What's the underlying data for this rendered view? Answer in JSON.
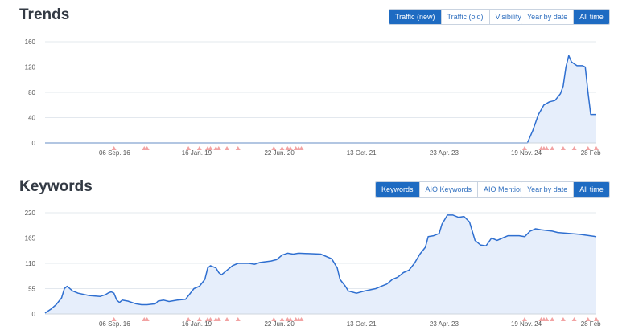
{
  "trends": {
    "title": "Trends",
    "metric_tabs": [
      {
        "label": "Traffic (new)",
        "active": true
      },
      {
        "label": "Traffic (old)",
        "active": false
      },
      {
        "label": "Visibility",
        "active": false
      }
    ],
    "range_tabs": [
      {
        "label": "Year by date",
        "active": false
      },
      {
        "label": "All time",
        "active": true
      }
    ]
  },
  "keywords": {
    "title": "Keywords",
    "metric_tabs": [
      {
        "label": "Keywords",
        "active": true
      },
      {
        "label": "AIO Keywords",
        "active": false
      },
      {
        "label": "AIO Mentions",
        "active": false
      }
    ],
    "range_tabs": [
      {
        "label": "Year by date",
        "active": false
      },
      {
        "label": "All time",
        "active": true
      }
    ]
  },
  "colors": {
    "line": "#2f6fd0",
    "area": "#e6eefb",
    "marker": "#f2a3a3",
    "active_tab": "#1e6bc2",
    "grid": "#e3e8ee"
  },
  "chart_data": [
    {
      "type": "area",
      "name": "Trends",
      "x_ticks": [
        "06 Sep. 16",
        "16 Jan. 19",
        "22 Jun. 20",
        "13 Oct. 21",
        "23 Apr. 23",
        "19 Nov. 24",
        "28 Feb"
      ],
      "x_tick_pos": [
        0.126,
        0.275,
        0.425,
        0.574,
        0.724,
        0.873,
        0.99
      ],
      "y_ticks": [
        0,
        40,
        80,
        120,
        160
      ],
      "ylim": [
        0,
        160
      ],
      "grid": true,
      "points": [
        [
          0,
          0
        ],
        [
          0.86,
          0
        ],
        [
          0.875,
          0
        ],
        [
          0.885,
          20
        ],
        [
          0.895,
          45
        ],
        [
          0.905,
          60
        ],
        [
          0.915,
          65
        ],
        [
          0.925,
          67
        ],
        [
          0.935,
          78
        ],
        [
          0.94,
          90
        ],
        [
          0.945,
          120
        ],
        [
          0.95,
          138
        ],
        [
          0.955,
          128
        ],
        [
          0.965,
          122
        ],
        [
          0.975,
          122
        ],
        [
          0.98,
          120
        ],
        [
          0.985,
          80
        ],
        [
          0.99,
          45
        ],
        [
          1.0,
          45
        ]
      ],
      "markers": [
        0.125,
        0.18,
        0.185,
        0.26,
        0.28,
        0.295,
        0.3,
        0.31,
        0.315,
        0.33,
        0.35,
        0.415,
        0.43,
        0.44,
        0.445,
        0.455,
        0.46,
        0.465,
        0.87,
        0.9,
        0.905,
        0.91,
        0.92,
        0.94,
        0.96,
        0.985,
        1.0
      ]
    },
    {
      "type": "area",
      "name": "Keywords",
      "x_ticks": [
        "06 Sep. 16",
        "16 Jan. 19",
        "22 Jun. 20",
        "13 Oct. 21",
        "23 Apr. 23",
        "19 Nov. 24",
        "28 Feb"
      ],
      "x_tick_pos": [
        0.126,
        0.275,
        0.425,
        0.574,
        0.724,
        0.873,
        0.99
      ],
      "y_ticks": [
        0,
        55,
        110,
        165,
        220
      ],
      "ylim": [
        0,
        220
      ],
      "grid": true,
      "points": [
        [
          0,
          2
        ],
        [
          0.01,
          10
        ],
        [
          0.02,
          20
        ],
        [
          0.03,
          35
        ],
        [
          0.035,
          55
        ],
        [
          0.04,
          60
        ],
        [
          0.05,
          50
        ],
        [
          0.06,
          45
        ],
        [
          0.08,
          40
        ],
        [
          0.1,
          38
        ],
        [
          0.11,
          42
        ],
        [
          0.115,
          46
        ],
        [
          0.12,
          48
        ],
        [
          0.125,
          45
        ],
        [
          0.13,
          30
        ],
        [
          0.135,
          25
        ],
        [
          0.14,
          30
        ],
        [
          0.15,
          28
        ],
        [
          0.165,
          22
        ],
        [
          0.175,
          20
        ],
        [
          0.185,
          20
        ],
        [
          0.2,
          22
        ],
        [
          0.205,
          28
        ],
        [
          0.215,
          30
        ],
        [
          0.225,
          27
        ],
        [
          0.24,
          30
        ],
        [
          0.255,
          32
        ],
        [
          0.27,
          55
        ],
        [
          0.28,
          60
        ],
        [
          0.29,
          75
        ],
        [
          0.295,
          100
        ],
        [
          0.3,
          105
        ],
        [
          0.31,
          100
        ],
        [
          0.315,
          90
        ],
        [
          0.32,
          85
        ],
        [
          0.33,
          95
        ],
        [
          0.34,
          105
        ],
        [
          0.35,
          110
        ],
        [
          0.37,
          110
        ],
        [
          0.38,
          108
        ],
        [
          0.39,
          112
        ],
        [
          0.41,
          115
        ],
        [
          0.42,
          118
        ],
        [
          0.43,
          128
        ],
        [
          0.44,
          132
        ],
        [
          0.45,
          130
        ],
        [
          0.46,
          132
        ],
        [
          0.5,
          130
        ],
        [
          0.52,
          120
        ],
        [
          0.53,
          100
        ],
        [
          0.535,
          75
        ],
        [
          0.545,
          60
        ],
        [
          0.55,
          50
        ],
        [
          0.565,
          45
        ],
        [
          0.58,
          50
        ],
        [
          0.6,
          55
        ],
        [
          0.61,
          60
        ],
        [
          0.62,
          65
        ],
        [
          0.63,
          75
        ],
        [
          0.64,
          80
        ],
        [
          0.65,
          90
        ],
        [
          0.66,
          95
        ],
        [
          0.67,
          110
        ],
        [
          0.68,
          130
        ],
        [
          0.69,
          145
        ],
        [
          0.695,
          168
        ],
        [
          0.705,
          170
        ],
        [
          0.715,
          175
        ],
        [
          0.72,
          195
        ],
        [
          0.725,
          205
        ],
        [
          0.73,
          215
        ],
        [
          0.74,
          215
        ],
        [
          0.75,
          210
        ],
        [
          0.76,
          212
        ],
        [
          0.77,
          200
        ],
        [
          0.775,
          180
        ],
        [
          0.78,
          160
        ],
        [
          0.79,
          150
        ],
        [
          0.8,
          148
        ],
        [
          0.81,
          165
        ],
        [
          0.82,
          160
        ],
        [
          0.83,
          165
        ],
        [
          0.84,
          170
        ],
        [
          0.86,
          170
        ],
        [
          0.87,
          168
        ],
        [
          0.88,
          180
        ],
        [
          0.89,
          185
        ],
        [
          0.9,
          183
        ],
        [
          0.92,
          180
        ],
        [
          0.93,
          177
        ],
        [
          0.95,
          175
        ],
        [
          0.97,
          173
        ],
        [
          1.0,
          168
        ]
      ],
      "markers": [
        0.125,
        0.18,
        0.185,
        0.26,
        0.28,
        0.295,
        0.3,
        0.31,
        0.315,
        0.33,
        0.35,
        0.415,
        0.43,
        0.44,
        0.445,
        0.455,
        0.46,
        0.465,
        0.87,
        0.9,
        0.905,
        0.91,
        0.92,
        0.94,
        0.96,
        0.985,
        1.0
      ]
    }
  ]
}
